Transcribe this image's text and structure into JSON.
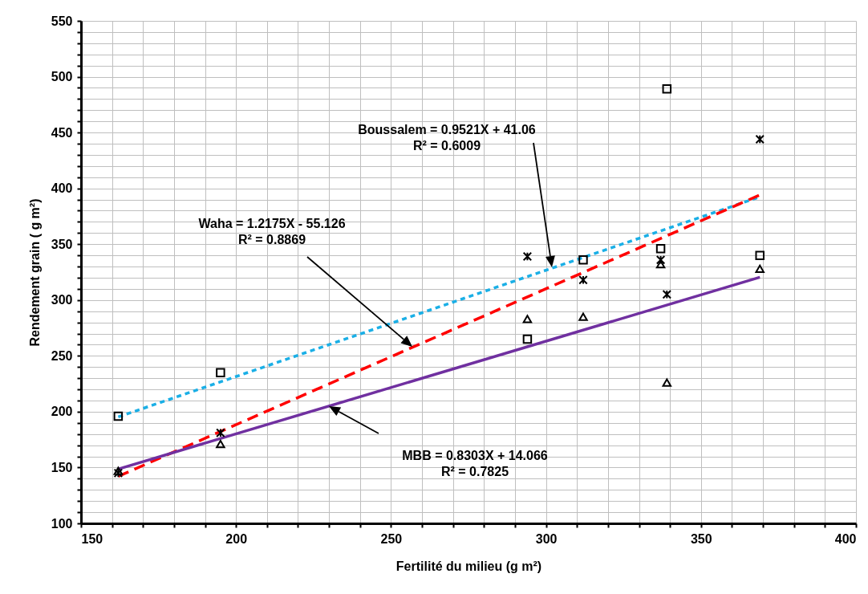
{
  "chart_data": {
    "type": "scatter",
    "xlabel": "Fertilité du milieu (g m²)",
    "ylabel": "Rendement grain ( g m²)",
    "xlim": [
      150,
      400
    ],
    "ylim": [
      100,
      550
    ],
    "xticks": [
      150,
      {
        "value": 160,
        "label": null
      },
      {
        "value": 170,
        "label": null
      },
      {
        "value": 180,
        "label": null
      },
      {
        "value": 190,
        "label": null
      },
      200,
      {
        "value": 210,
        "label": null
      },
      {
        "value": 220,
        "label": null
      },
      {
        "value": 230,
        "label": null
      },
      {
        "value": 240,
        "label": null
      },
      250,
      {
        "value": 260,
        "label": null
      },
      {
        "value": 270,
        "label": null
      },
      {
        "value": 280,
        "label": null
      },
      {
        "value": 290,
        "label": null
      },
      300,
      {
        "value": 310,
        "label": null
      },
      {
        "value": 320,
        "label": null
      },
      {
        "value": 330,
        "label": null
      },
      {
        "value": 340,
        "label": null
      },
      350,
      {
        "value": 360,
        "label": null
      },
      {
        "value": 370,
        "label": null
      },
      {
        "value": 380,
        "label": null
      },
      {
        "value": 390,
        "label": null
      },
      400
    ],
    "yticks": [
      100,
      {
        "value": 110,
        "label": null
      },
      {
        "value": 120,
        "label": null
      },
      {
        "value": 130,
        "label": null
      },
      {
        "value": 140,
        "label": null
      },
      150,
      {
        "value": 160,
        "label": null
      },
      {
        "value": 170,
        "label": null
      },
      {
        "value": 180,
        "label": null
      },
      {
        "value": 190,
        "label": null
      },
      200,
      {
        "value": 210,
        "label": null
      },
      {
        "value": 220,
        "label": null
      },
      {
        "value": 230,
        "label": null
      },
      {
        "value": 240,
        "label": null
      },
      250,
      {
        "value": 260,
        "label": null
      },
      {
        "value": 270,
        "label": null
      },
      {
        "value": 280,
        "label": null
      },
      {
        "value": 290,
        "label": null
      },
      300,
      {
        "value": 310,
        "label": null
      },
      {
        "value": 320,
        "label": null
      },
      {
        "value": 330,
        "label": null
      },
      {
        "value": 340,
        "label": null
      },
      350,
      {
        "value": 360,
        "label": null
      },
      {
        "value": 370,
        "label": null
      },
      {
        "value": 380,
        "label": null
      },
      {
        "value": 390,
        "label": null
      },
      400,
      {
        "value": 410,
        "label": null
      },
      {
        "value": 420,
        "label": null
      },
      {
        "value": 430,
        "label": null
      },
      {
        "value": 440,
        "label": null
      },
      450,
      {
        "value": 460,
        "label": null
      },
      {
        "value": 470,
        "label": null
      },
      {
        "value": 480,
        "label": null
      },
      {
        "value": 490,
        "label": null
      },
      500,
      {
        "value": 510,
        "label": null
      },
      {
        "value": 520,
        "label": null
      },
      {
        "value": 530,
        "label": null
      },
      {
        "value": 540,
        "label": null
      },
      550
    ],
    "grid": true,
    "series": [
      {
        "type": "scatter",
        "color": "#000000",
        "marker": "square",
        "x": [
          162,
          195,
          294,
          312,
          337,
          339,
          369
        ],
        "values": [
          196,
          235,
          265,
          336,
          346,
          489,
          340
        ]
      },
      {
        "type": "scatter",
        "color": "#000000",
        "marker": "cross",
        "x": [
          162,
          195,
          294,
          312,
          337,
          339,
          369
        ],
        "values": [
          145,
          181,
          339,
          318,
          336,
          305,
          444
        ]
      },
      {
        "type": "scatter",
        "color": "#000000",
        "marker": "triangle",
        "x": [
          162,
          195,
          294,
          312,
          337,
          339,
          369
        ],
        "values": [
          147,
          171,
          283,
          285,
          332,
          226,
          328
        ]
      },
      {
        "type": "line",
        "color": "#1aafe6",
        "line_style": "dotted",
        "x": [
          162,
          369
        ],
        "values": [
          195.3,
          392.4
        ]
      },
      {
        "type": "line",
        "color": "#ff0000",
        "line_style": "dashed",
        "x": [
          162,
          369
        ],
        "values": [
          142.1,
          394.1
        ]
      },
      {
        "type": "line",
        "color": "#7030a0",
        "line_style": "solid",
        "x": [
          162,
          369
        ],
        "values": [
          148.6,
          320.4
        ]
      }
    ],
    "annotations": [
      "Boussalem = 0.9521X + 41.06\nR² = 0.6009",
      "Waha = 1.2175X - 55.126\nR² = 0.8869",
      "MBB = 0.8303X + 14.066\nR² = 0.7825"
    ]
  }
}
